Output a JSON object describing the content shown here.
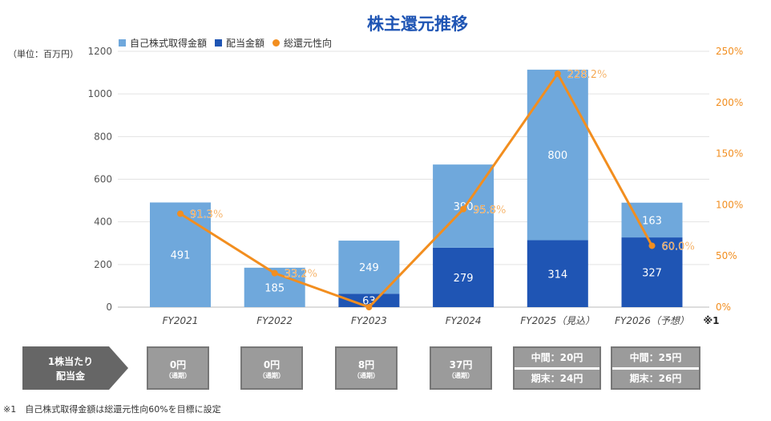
{
  "title": "株主還元推移",
  "unit": "（単位：百万円）",
  "chart_data": {
    "type": "bar",
    "title": "株主還元推移",
    "categories": [
      "FY2021",
      "FY2022",
      "FY2023",
      "FY2024",
      "FY2025（見込）",
      "FY2026（予想）"
    ],
    "category_note": "※1",
    "series": [
      {
        "name": "配当金額",
        "type": "stacked-bar",
        "color": "#1f55b4",
        "values": [
          0,
          0,
          63,
          279,
          314,
          327
        ]
      },
      {
        "name": "自己株式取得金額",
        "type": "stacked-bar",
        "color": "#6fa8dc",
        "values": [
          491,
          185,
          249,
          390,
          800,
          163
        ]
      },
      {
        "name": "総還元性向",
        "type": "line",
        "axis": "right",
        "color": "#f28e1f",
        "values": [
          91.3,
          33.2,
          0,
          95.8,
          228.2,
          60.0
        ],
        "labels": [
          "91.3%",
          "33.2%",
          "",
          "95.8%",
          "228.2%",
          "60.0%"
        ]
      }
    ],
    "ylim": [
      0,
      1200
    ],
    "yticks": [
      0,
      200,
      400,
      600,
      800,
      1000,
      1200
    ],
    "y2lim": [
      0,
      250
    ],
    "y2ticks": [
      "0%",
      "50%",
      "100%",
      "150%",
      "200%",
      "250%"
    ],
    "legend_position": "top"
  },
  "dividend": {
    "label_line1": "1株当たり",
    "label_line2": "配当金",
    "items": [
      {
        "main": "0円",
        "sub": "（通期）"
      },
      {
        "main": "0円",
        "sub": "（通期）"
      },
      {
        "main": "8円",
        "sub": "（通期）"
      },
      {
        "main": "37円",
        "sub": "（通期）"
      },
      {
        "interim": "中間：20円",
        "final": "期末：24円"
      },
      {
        "interim": "中間：25円",
        "final": "期末：26円"
      }
    ]
  },
  "footnote": "※1　自己株式取得金額は総還元性向60%を目標に設定"
}
